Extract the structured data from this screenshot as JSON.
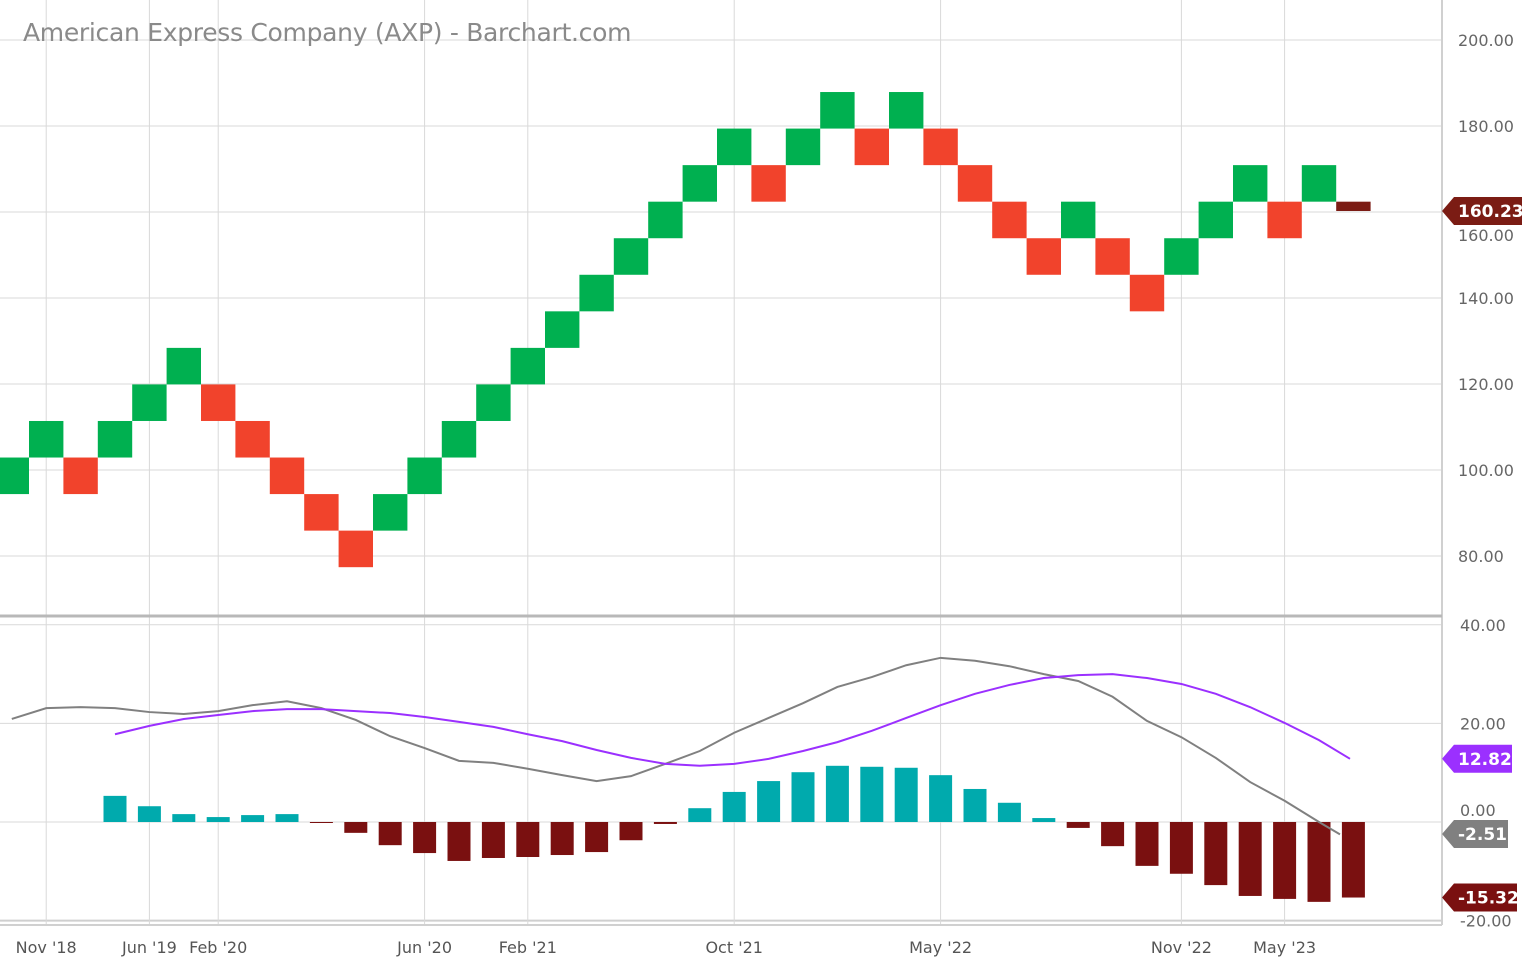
{
  "chart_data": [
    {
      "type": "renko",
      "title": "American Express Company (AXP) - Barchart.com",
      "ylim": [
        70,
        205
      ],
      "y_ticks": [
        "80.00",
        "100.00",
        "120.00",
        "140.00",
        "160.00",
        "180.00",
        "200.00"
      ],
      "x_tick_labels": [
        {
          "label": "Nov '18",
          "brick": 1
        },
        {
          "label": "Jun '19",
          "brick": 4
        },
        {
          "label": "Feb '20",
          "brick": 6
        },
        {
          "label": "Jun '20",
          "brick": 12
        },
        {
          "label": "Feb '21",
          "brick": 15
        },
        {
          "label": "Oct '21",
          "brick": 21
        },
        {
          "label": "May '22",
          "brick": 27
        },
        {
          "label": "Nov '22",
          "brick": 34
        },
        {
          "label": "May '23",
          "brick": 37
        }
      ],
      "grid": true,
      "colors": {
        "up": "#00b050",
        "down": "#f1432c",
        "current": "#7b1c14"
      },
      "bricks": [
        {
          "low": 94.4,
          "high": 102.9,
          "dir": "up"
        },
        {
          "low": 102.9,
          "high": 111.4,
          "dir": "up"
        },
        {
          "low": 94.4,
          "high": 102.9,
          "dir": "down"
        },
        {
          "low": 102.9,
          "high": 111.4,
          "dir": "up"
        },
        {
          "low": 111.4,
          "high": 119.9,
          "dir": "up"
        },
        {
          "low": 119.9,
          "high": 128.4,
          "dir": "up"
        },
        {
          "low": 111.4,
          "high": 119.9,
          "dir": "down"
        },
        {
          "low": 102.9,
          "high": 111.4,
          "dir": "down"
        },
        {
          "low": 94.4,
          "high": 102.9,
          "dir": "down"
        },
        {
          "low": 85.9,
          "high": 94.4,
          "dir": "down"
        },
        {
          "low": 77.4,
          "high": 85.9,
          "dir": "down"
        },
        {
          "low": 85.9,
          "high": 94.4,
          "dir": "up"
        },
        {
          "low": 94.4,
          "high": 102.9,
          "dir": "up"
        },
        {
          "low": 102.9,
          "high": 111.4,
          "dir": "up"
        },
        {
          "low": 111.4,
          "high": 119.9,
          "dir": "up"
        },
        {
          "low": 119.9,
          "high": 128.4,
          "dir": "up"
        },
        {
          "low": 128.4,
          "high": 136.9,
          "dir": "up"
        },
        {
          "low": 136.9,
          "high": 145.4,
          "dir": "up"
        },
        {
          "low": 145.4,
          "high": 153.9,
          "dir": "up"
        },
        {
          "low": 153.9,
          "high": 162.4,
          "dir": "up"
        },
        {
          "low": 162.4,
          "high": 170.9,
          "dir": "up"
        },
        {
          "low": 170.9,
          "high": 179.4,
          "dir": "up"
        },
        {
          "low": 162.4,
          "high": 170.9,
          "dir": "down"
        },
        {
          "low": 170.9,
          "high": 179.4,
          "dir": "up"
        },
        {
          "low": 179.4,
          "high": 187.9,
          "dir": "up"
        },
        {
          "low": 170.9,
          "high": 179.4,
          "dir": "down"
        },
        {
          "low": 179.4,
          "high": 187.9,
          "dir": "up"
        },
        {
          "low": 170.9,
          "high": 179.4,
          "dir": "down"
        },
        {
          "low": 162.4,
          "high": 170.9,
          "dir": "down"
        },
        {
          "low": 153.9,
          "high": 162.4,
          "dir": "down"
        },
        {
          "low": 145.4,
          "high": 153.9,
          "dir": "down"
        },
        {
          "low": 153.9,
          "high": 162.4,
          "dir": "up"
        },
        {
          "low": 145.4,
          "high": 153.9,
          "dir": "down"
        },
        {
          "low": 136.9,
          "high": 145.4,
          "dir": "down"
        },
        {
          "low": 145.4,
          "high": 153.9,
          "dir": "up"
        },
        {
          "low": 153.9,
          "high": 162.4,
          "dir": "up"
        },
        {
          "low": 162.4,
          "high": 170.9,
          "dir": "up"
        },
        {
          "low": 153.9,
          "high": 162.4,
          "dir": "down"
        },
        {
          "low": 162.4,
          "high": 170.9,
          "dir": "up"
        },
        {
          "low": 160.23,
          "high": 162.4,
          "dir": "current"
        }
      ],
      "last_price": "160.23"
    },
    {
      "type": "macd",
      "ylim": [
        -20,
        40
      ],
      "y_ticks": [
        "-20.00",
        "0.00",
        "20.00",
        "40.00"
      ],
      "colors": {
        "macd": "#808080",
        "signal": "#9b30ff",
        "hist_pos": "#00aaad",
        "hist_neg": "#7a1010"
      },
      "macd": [
        20.9,
        23.1,
        23.3,
        23.1,
        22.3,
        21.9,
        22.5,
        23.7,
        24.5,
        23.1,
        20.7,
        17.4,
        15.0,
        12.4,
        12.0,
        10.8,
        9.5,
        8.3,
        9.3,
        11.8,
        14.4,
        18.1,
        21.1,
        24.1,
        27.4,
        29.4,
        31.8,
        33.3,
        32.7,
        31.6,
        30.0,
        28.6,
        25.4,
        20.5,
        17.2,
        13.0,
        8.1,
        4.3,
        0.0,
        -2.51
      ],
      "signal_start_brick": 3,
      "signal": [
        17.8,
        19.5,
        20.9,
        21.7,
        22.5,
        22.9,
        22.9,
        22.5,
        22.1,
        21.3,
        20.3,
        19.3,
        17.8,
        16.4,
        14.6,
        13.0,
        11.8,
        11.4,
        11.8,
        12.8,
        14.4,
        16.2,
        18.5,
        21.1,
        23.7,
        26.0,
        27.8,
        29.2,
        29.8,
        30.0,
        29.2,
        28.0,
        26.0,
        23.3,
        20.1,
        16.6,
        12.82
      ],
      "histogram_start_brick": 3,
      "histogram": [
        5.3,
        3.2,
        1.6,
        1.0,
        1.4,
        1.6,
        -0.2,
        -2.2,
        -4.7,
        -6.3,
        -7.9,
        -7.3,
        -7.1,
        -6.7,
        -6.1,
        -3.7,
        -0.4,
        2.8,
        6.1,
        8.3,
        10.1,
        11.4,
        11.2,
        11.0,
        9.5,
        6.7,
        3.9,
        0.8,
        -1.2,
        -4.9,
        -8.9,
        -10.5,
        -12.8,
        -15.0,
        -15.6,
        -16.2,
        -15.32
      ],
      "last_values": {
        "signal": "12.82",
        "macd": "-2.51",
        "histogram": "-15.32"
      }
    }
  ]
}
